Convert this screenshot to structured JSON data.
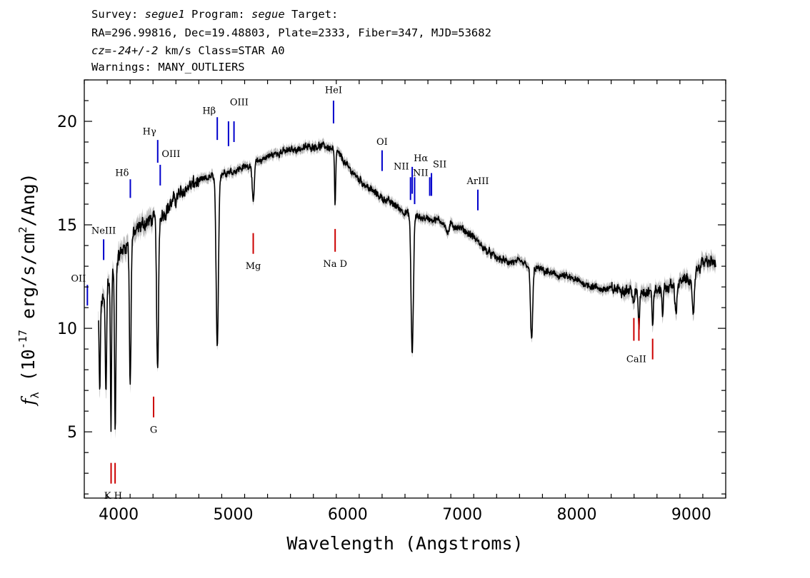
{
  "header": {
    "line1": {
      "survey_label": "Survey:",
      "survey": "segue1",
      "program_label": "Program:",
      "program": "segue",
      "target_label": "Target:"
    },
    "line2": "RA=296.99816, Dec=19.48803, Plate=2333, Fiber=347, MJD=53682",
    "line3": {
      "cz_label": "cz=",
      "cz": "-24+/-2",
      "cz_unit": "km/s Class=STAR A0"
    },
    "line4": "Warnings: MANY_OUTLIERS"
  },
  "chart_data": {
    "type": "line",
    "xlabel": "Wavelength (Angstroms)",
    "ylabel": "f_λ (10^-17 erg/s/cm^2/Ang)",
    "xlim": [
      3700,
      9300
    ],
    "ylim": [
      1.8,
      22.0
    ],
    "xticks": [
      4000,
      5000,
      6000,
      7000,
      8000,
      9000
    ],
    "yticks": [
      5,
      10,
      15,
      20
    ],
    "grid": false,
    "colors": {
      "spectrum": "#000000",
      "error_band": "#b8b8b8",
      "emission": "#0000cc",
      "absorption": "#cc0000"
    },
    "continuum": [
      [
        3820,
        10.5
      ],
      [
        3900,
        12.2
      ],
      [
        4000,
        13.5
      ],
      [
        4100,
        14.3
      ],
      [
        4200,
        15.0
      ],
      [
        4300,
        15.3
      ],
      [
        4400,
        15.6
      ],
      [
        4500,
        16.3
      ],
      [
        4600,
        16.8
      ],
      [
        4700,
        17.1
      ],
      [
        4800,
        17.3
      ],
      [
        4900,
        17.5
      ],
      [
        5000,
        17.6
      ],
      [
        5100,
        17.8
      ],
      [
        5200,
        18.0
      ],
      [
        5300,
        18.3
      ],
      [
        5400,
        18.5
      ],
      [
        5500,
        18.6
      ],
      [
        5600,
        18.7
      ],
      [
        5700,
        18.8
      ],
      [
        5800,
        18.8
      ],
      [
        5900,
        18.6
      ],
      [
        6000,
        17.8
      ],
      [
        6100,
        17.2
      ],
      [
        6200,
        16.7
      ],
      [
        6300,
        16.3
      ],
      [
        6400,
        16.0
      ],
      [
        6500,
        15.6
      ],
      [
        6600,
        15.4
      ],
      [
        6700,
        15.3
      ],
      [
        6800,
        15.2
      ],
      [
        6900,
        15.0
      ],
      [
        7000,
        14.8
      ],
      [
        7100,
        14.4
      ],
      [
        7200,
        13.8
      ],
      [
        7300,
        13.4
      ],
      [
        7400,
        13.2
      ],
      [
        7500,
        13.2
      ],
      [
        7600,
        13.0
      ],
      [
        7700,
        12.8
      ],
      [
        7800,
        12.6
      ],
      [
        7900,
        12.5
      ],
      [
        8000,
        12.3
      ],
      [
        8100,
        12.1
      ],
      [
        8200,
        11.9
      ],
      [
        8300,
        11.9
      ],
      [
        8400,
        11.9
      ],
      [
        8500,
        11.8
      ],
      [
        8600,
        11.8
      ],
      [
        8700,
        11.8
      ],
      [
        8800,
        12.0
      ],
      [
        8900,
        12.2
      ],
      [
        9000,
        12.5
      ],
      [
        9100,
        13.2
      ],
      [
        9200,
        13.2
      ]
    ],
    "absorption_features": [
      {
        "center": 3835,
        "depth": 4.0,
        "width": 5
      },
      {
        "center": 3889,
        "depth": 5.2,
        "width": 6
      },
      {
        "center": 3933,
        "depth": 7.5,
        "width": 5
      },
      {
        "center": 3970,
        "depth": 8.3,
        "width": 6
      },
      {
        "center": 4101,
        "depth": 7.0,
        "width": 7
      },
      {
        "center": 4340,
        "depth": 7.7,
        "width": 8
      },
      {
        "center": 4861,
        "depth": 8.5,
        "width": 10
      },
      {
        "center": 5175,
        "depth": 2.0,
        "width": 8
      },
      {
        "center": 5890,
        "depth": 2.8,
        "width": 5
      },
      {
        "center": 6563,
        "depth": 6.7,
        "width": 10
      },
      {
        "center": 6870,
        "depth": 0.5,
        "width": 12
      },
      {
        "center": 7605,
        "depth": 3.5,
        "width": 10
      },
      {
        "center": 8498,
        "depth": 0.8,
        "width": 6
      },
      {
        "center": 8542,
        "depth": 1.7,
        "width": 6
      },
      {
        "center": 8662,
        "depth": 1.6,
        "width": 6
      },
      {
        "center": 8750,
        "depth": 1.1,
        "width": 6
      },
      {
        "center": 8865,
        "depth": 1.4,
        "width": 8
      },
      {
        "center": 9015,
        "depth": 2.0,
        "width": 10
      },
      {
        "center": 9230,
        "depth": 1.2,
        "width": 10
      }
    ],
    "emission_lines": [
      {
        "label": "OII",
        "wave": 3727,
        "y_top": 12.1,
        "y_bottom": 11.1,
        "label_y": 12.2,
        "label_side": "left"
      },
      {
        "label": "NeIII",
        "wave": 3869,
        "y_top": 14.3,
        "y_bottom": 13.3,
        "label_y": 14.5,
        "label_side": "center"
      },
      {
        "label": "Hδ",
        "wave": 4102,
        "y_top": 17.2,
        "y_bottom": 16.3,
        "label_y": 17.3,
        "label_side": "left"
      },
      {
        "label": "Hγ",
        "wave": 4341,
        "y_top": 19.1,
        "y_bottom": 18.0,
        "label_y": 19.3,
        "label_side": "left"
      },
      {
        "label": "OIII",
        "wave": 4363,
        "y_top": 17.9,
        "y_bottom": 16.9,
        "label_y": 18.2,
        "label_side": "right"
      },
      {
        "label": "Hβ",
        "wave": 4861,
        "y_top": 20.2,
        "y_bottom": 19.1,
        "label_y": 20.3,
        "label_side": "left"
      },
      {
        "label": "OIII",
        "wave": 4959,
        "y_top": 20.0,
        "y_bottom": 18.8,
        "label_y": 20.7,
        "label_side": "right"
      },
      {
        "label": "",
        "wave": 5007,
        "y_top": 20.0,
        "y_bottom": 19.0,
        "label_y": 0,
        "label_side": "none"
      },
      {
        "label": "HeI",
        "wave": 5876,
        "y_top": 21.0,
        "y_bottom": 19.9,
        "label_y": 21.3,
        "label_side": "center"
      },
      {
        "label": "OI",
        "wave": 6300,
        "y_top": 18.6,
        "y_bottom": 17.6,
        "label_y": 18.8,
        "label_side": "center"
      },
      {
        "label": "NII",
        "wave": 6548,
        "y_top": 17.3,
        "y_bottom": 16.2,
        "label_y": 17.6,
        "label_side": "left"
      },
      {
        "label": "Hα",
        "wave": 6563,
        "y_top": 17.8,
        "y_bottom": 16.5,
        "label_y": 18.0,
        "label_side": "right"
      },
      {
        "label": "",
        "wave": 6584,
        "y_top": 17.3,
        "y_bottom": 16.0,
        "label_y": 0,
        "label_side": "none"
      },
      {
        "label": "NII",
        "wave": 6716,
        "y_top": 17.3,
        "y_bottom": 16.4,
        "label_y": 17.3,
        "label_side": "left"
      },
      {
        "label": "SII",
        "wave": 6731,
        "y_top": 17.5,
        "y_bottom": 16.4,
        "label_y": 17.7,
        "label_side": "right"
      },
      {
        "label": "ArIII",
        "wave": 7136,
        "y_top": 16.7,
        "y_bottom": 15.7,
        "label_y": 16.9,
        "label_side": "center"
      }
    ],
    "absorption_lines": [
      {
        "label": "K H",
        "waves": [
          3934,
          3969
        ],
        "y_top": 3.5,
        "y_bottom": 2.5,
        "label_y": 1.9
      },
      {
        "label": "G",
        "waves": [
          4305
        ],
        "y_top": 6.7,
        "y_bottom": 5.7,
        "label_y": 5.1
      },
      {
        "label": "Mg",
        "waves": [
          5175
        ],
        "y_top": 14.6,
        "y_bottom": 13.6,
        "label_y": 13.0
      },
      {
        "label": "Na D",
        "waves": [
          5890
        ],
        "y_top": 14.8,
        "y_bottom": 13.7,
        "label_y": 13.1
      },
      {
        "label": "CaII",
        "waves": [
          8498,
          8542
        ],
        "y_top": 10.5,
        "y_bottom": 9.4,
        "label_y": 8.5
      },
      {
        "label": "",
        "waves": [
          8662
        ],
        "y_top": 9.5,
        "y_bottom": 8.5,
        "label_y": 0
      }
    ]
  }
}
